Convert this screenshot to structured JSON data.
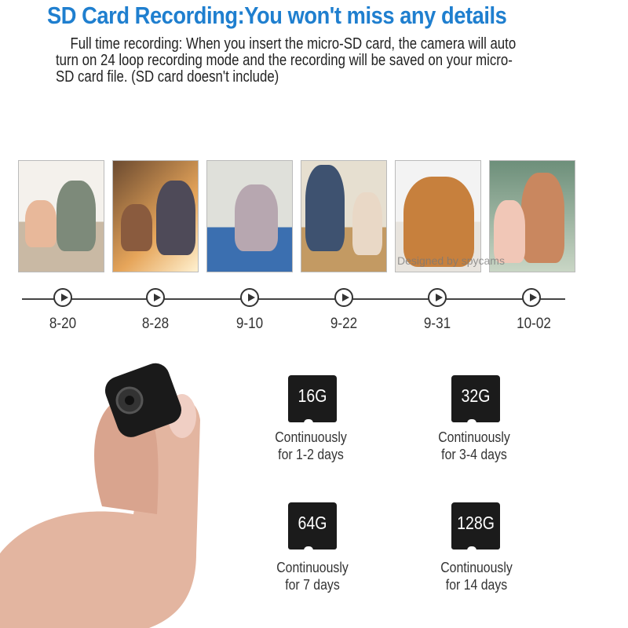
{
  "title": "SD Card Recording:You won't miss any details",
  "description": "Full time recording: When you insert the micro-SD card, the camera will auto turn on 24 loop recording mode and the recording will be saved on your micro-SD card file. (SD card doesn't include)",
  "watermark": "Designed by spycams",
  "timeline": [
    {
      "date": "8-20"
    },
    {
      "date": "8-28"
    },
    {
      "date": "9-10"
    },
    {
      "date": "9-22"
    },
    {
      "date": "9-31"
    },
    {
      "date": "10-02"
    }
  ],
  "cards": [
    {
      "capacity": "16G",
      "line1": "Continuously",
      "line2": "for 1-2 days"
    },
    {
      "capacity": "32G",
      "line1": "Continuously",
      "line2": "for 3-4 days"
    },
    {
      "capacity": "64G",
      "line1": "Continuously",
      "line2": "for 7 days"
    },
    {
      "capacity": "128G",
      "line1": "Continuously",
      "line2": "for 14 days"
    }
  ]
}
